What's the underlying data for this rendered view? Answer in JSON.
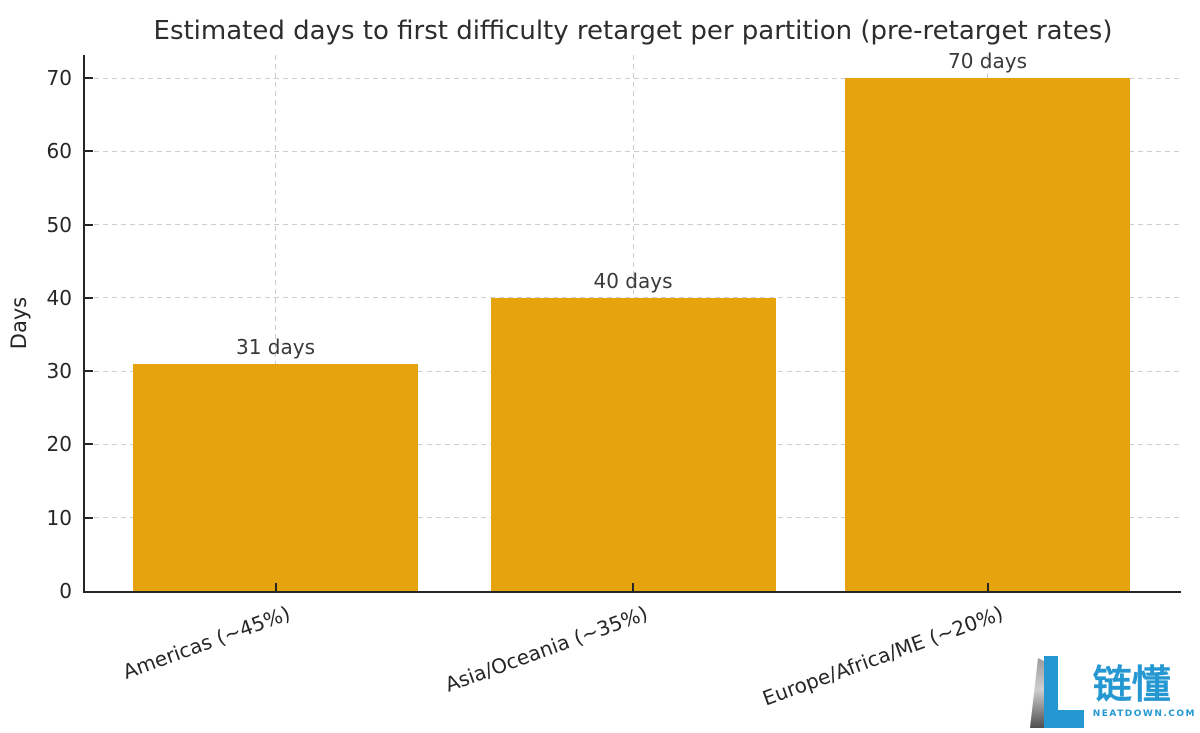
{
  "chart_data": {
    "type": "bar",
    "title": "Estimated days to first difficulty retarget per partition (pre-retarget rates)",
    "xlabel": "",
    "ylabel": "Days",
    "categories": [
      "Americas (~45%)",
      "Asia/Oceania (~35%)",
      "Europe/Africa/ME (~20%)"
    ],
    "values": [
      31,
      40,
      70
    ],
    "bar_value_labels": [
      "31 days",
      "40 days",
      "70 days"
    ],
    "yticks": [
      0,
      10,
      20,
      30,
      40,
      50,
      60,
      70
    ],
    "ylim": [
      0,
      73.2
    ],
    "bar_color": "#E5A30D",
    "grid": {
      "horizontal": true,
      "vertical": true,
      "style": "dashed",
      "color": "#cdcdcd"
    },
    "legend_position": "none",
    "axis_color": "#262626"
  },
  "watermark": {
    "brand_name": "链懂",
    "brand_sub": "NEATDOWN.COM",
    "brand_color": "#2598D2",
    "logo_icon": "stylized-L-with-gray-wedge"
  }
}
